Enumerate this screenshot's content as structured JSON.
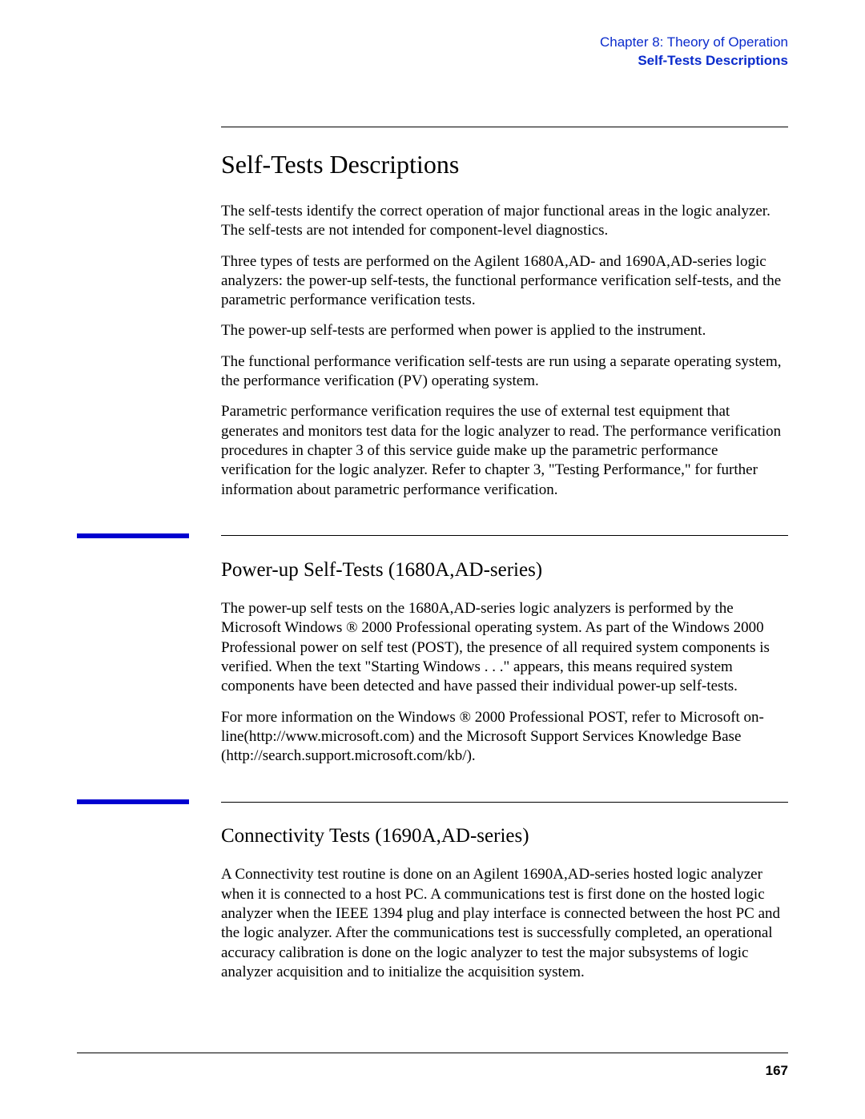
{
  "header": {
    "chapter": "Chapter 8: Theory of Operation",
    "section": "Self-Tests Descriptions"
  },
  "main": {
    "title": "Self-Tests Descriptions",
    "paragraphs": [
      "The self-tests identify the correct operation of major functional areas in the logic analyzer. The self-tests are not intended for component-level diagnostics.",
      "Three types of tests are performed on the Agilent 1680A,AD- and 1690A,AD-series logic analyzers: the power-up self-tests, the functional performance verification self-tests, and the parametric performance verification tests.",
      "The power-up self-tests are performed when power is applied to the instrument.",
      "The functional performance verification self-tests are run using a separate operating system, the performance verification (PV) operating system.",
      "Parametric performance verification requires the use of external test equipment that generates and monitors test data for the logic analyzer to read. The performance verification procedures in chapter 3 of this service guide make up the parametric performance verification for the logic analyzer. Refer to chapter 3, \"Testing Performance,\" for further information about parametric performance verification."
    ]
  },
  "sections": [
    {
      "title": "Power-up Self-Tests (1680A,AD-series)",
      "paragraphs": [
        "The power-up self tests on the 1680A,AD-series logic analyzers is performed by the Microsoft Windows ® 2000 Professional operating system. As part of the Windows 2000 Professional power on self test (POST), the presence of all required system components is verified. When the text \"Starting Windows . . .\" appears, this means required system components have been detected and have passed their individual power-up self-tests.",
        "For more information on the Windows ® 2000 Professional POST, refer to Microsoft on-line(http://www.microsoft.com) and the Microsoft Support Services Knowledge Base (http://search.support.microsoft.com/kb/)."
      ]
    },
    {
      "title": "Connectivity Tests (1690A,AD-series)",
      "paragraphs": [
        "A Connectivity test routine is done on an Agilent 1690A,AD-series hosted logic analyzer when it is connected to a host PC. A communications test is first done on the hosted logic analyzer when the IEEE 1394 plug and play interface is connected between the host PC and the logic analyzer. After the communications test is successfully completed, an operational accuracy calibration is done on the logic analyzer to test the major subsystems of logic analyzer acquisition and to initialize the acquisition system."
      ]
    }
  ],
  "footer": {
    "page_number": "167"
  },
  "colors": {
    "link_blue": "#0a2bcc",
    "tab_blue": "#0000d0",
    "text": "#000000",
    "background": "#ffffff"
  },
  "typography": {
    "body_font": "Century Schoolbook / Georgia serif",
    "header_font": "Arial / Helvetica sans-serif",
    "main_title_pt": 32,
    "sub_title_pt": 25,
    "body_pt": 19,
    "header_pt": 17,
    "page_num_pt": 17
  }
}
